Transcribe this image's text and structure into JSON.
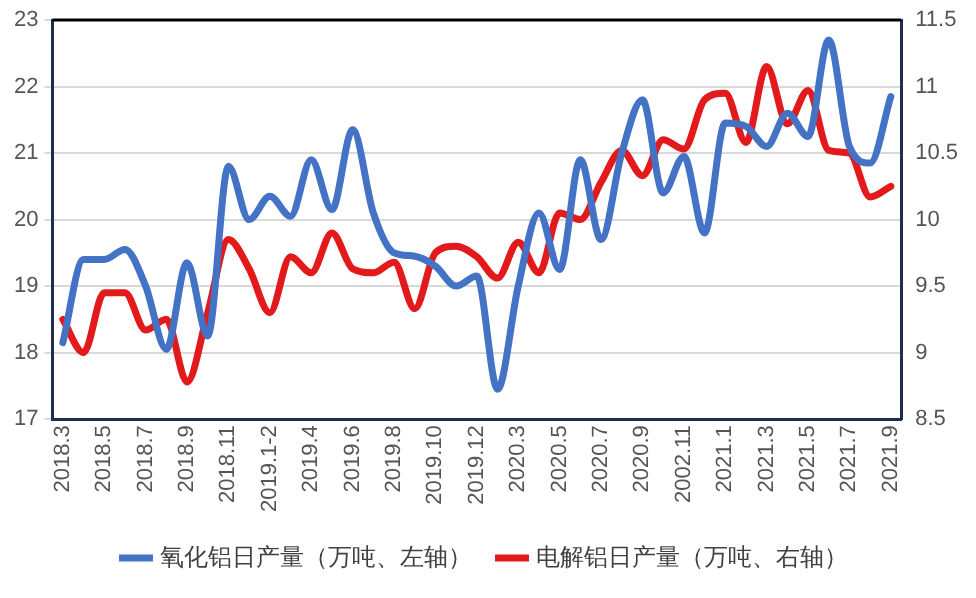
{
  "chart_data": {
    "type": "line",
    "categories": [
      "2018.3",
      null,
      "2018.5",
      null,
      "2018.7",
      null,
      "2018.9",
      null,
      "2018.11",
      null,
      "2019.1-2",
      null,
      "2019.4",
      null,
      "2019.6",
      null,
      "2019.8",
      null,
      "2019.10",
      null,
      "2019.12",
      null,
      "2020.3",
      null,
      "2020.5",
      null,
      "2020.7",
      null,
      "2020.9",
      null,
      "2002.11",
      null,
      "2021.1",
      null,
      "2021.3",
      null,
      "2021.5",
      null,
      "2021.7",
      null,
      "2021.9"
    ],
    "series": [
      {
        "name": "氧化铝日产量（万吨、左轴）",
        "color": "#4472c4",
        "values": [
          18.15,
          19.4,
          19.4,
          19.55,
          19.0,
          18.05,
          19.35,
          18.25,
          20.8,
          20.0,
          20.35,
          20.05,
          20.9,
          20.15,
          21.35,
          20.1,
          19.5,
          19.45,
          19.3,
          19.0,
          19.15,
          17.45,
          19.0,
          20.1,
          19.25,
          20.9,
          19.7,
          21.0,
          21.8,
          20.4,
          20.95,
          19.8,
          21.45,
          21.4,
          21.1,
          21.6,
          21.25,
          22.7,
          21.1,
          20.85,
          21.85
        ]
      },
      {
        "name": "电解铝日产量（万吨、右轴）",
        "color": "#e31a1c",
        "axis": "y2",
        "values": [
          9.25,
          9.0,
          9.45,
          9.45,
          9.17,
          9.25,
          8.78,
          9.3,
          9.85,
          9.63,
          9.3,
          9.72,
          9.6,
          9.9,
          9.63,
          9.6,
          9.68,
          9.33,
          9.75,
          9.8,
          9.72,
          9.56,
          9.83,
          9.6,
          10.05,
          10.0,
          10.28,
          10.52,
          10.33,
          10.6,
          10.53,
          10.9,
          10.95,
          10.58,
          11.15,
          10.72,
          10.97,
          10.52,
          10.5,
          10.17,
          10.25
        ]
      }
    ],
    "ylim": [
      17,
      23
    ],
    "yticks": [
      17,
      18,
      19,
      20,
      21,
      22,
      23
    ],
    "y2lim": [
      8.5,
      11.5
    ],
    "y2ticks": [
      8.5,
      9,
      9.5,
      10,
      10.5,
      11,
      11.5
    ],
    "grid": "y",
    "legend": "bottom",
    "line_style": "solid",
    "marker": "none"
  }
}
